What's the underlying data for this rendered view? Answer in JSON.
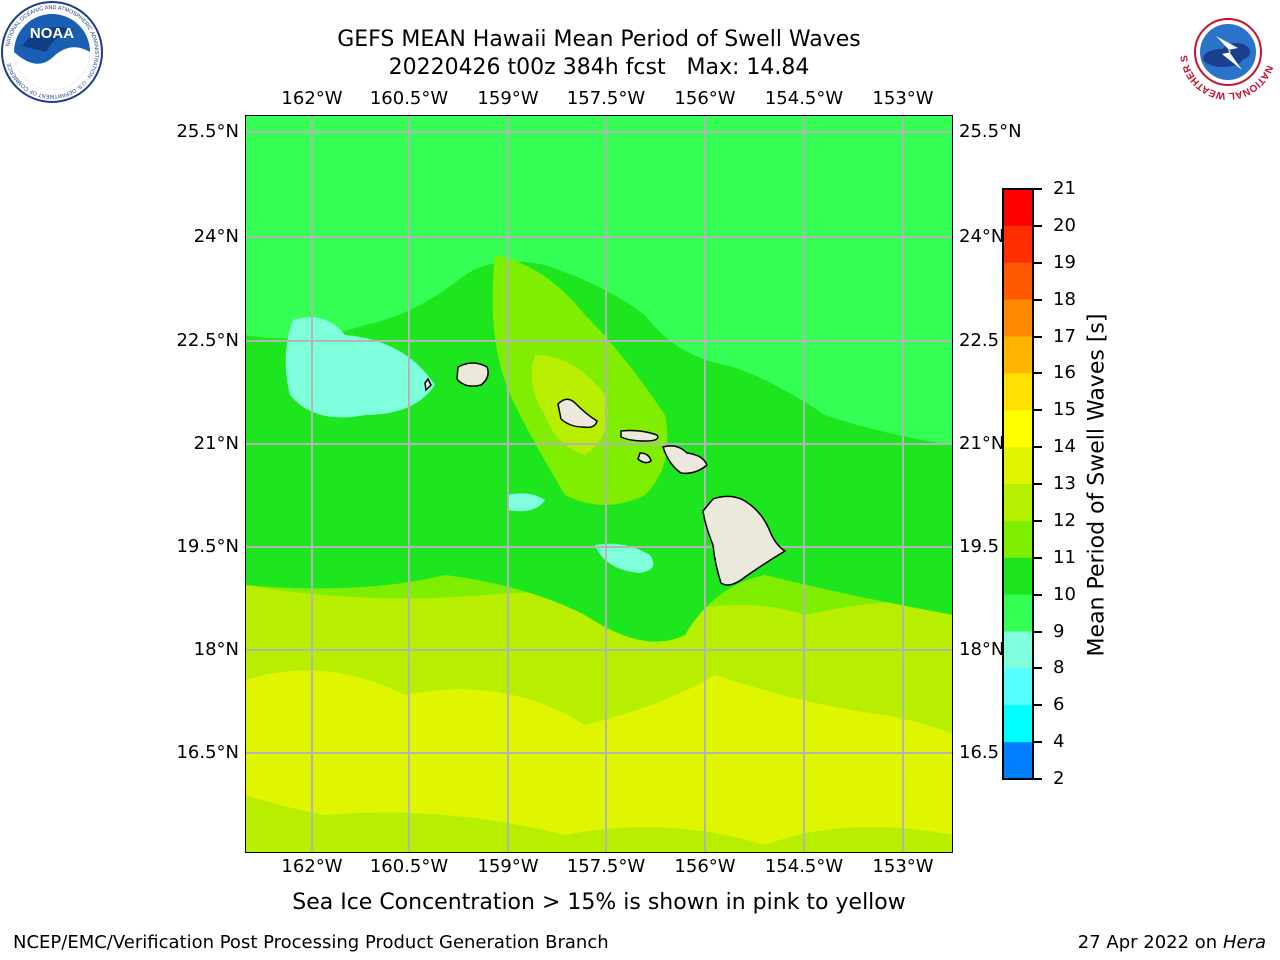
{
  "title": {
    "line1": "GEFS MEAN Hawaii Mean Period of Swell Waves",
    "line2": "20220426 t00z 384h fcst   Max: 14.84"
  },
  "map": {
    "lon_ticks": [
      "162°W",
      "160.5°W",
      "159°W",
      "157.5°W",
      "156°W",
      "154.5°W",
      "153°W"
    ],
    "lat_ticks": [
      "25.5°N",
      "24°N",
      "22.5°N",
      "21°N",
      "19.5°N",
      "18°N",
      "16.5°N"
    ],
    "lat_ticks_right": [
      "25.5°N",
      "24°N",
      "22.5",
      "21°N",
      "19.5",
      "18°N",
      "16.5"
    ],
    "gridline_color": "#b4b4b4",
    "land_color": "#ece9dc"
  },
  "colorbar": {
    "label": "Mean Period of Swell Waves [s]",
    "ticks": [
      "21",
      "20",
      "19",
      "18",
      "17",
      "16",
      "15",
      "14",
      "13",
      "12",
      "11",
      "10",
      "9",
      "8",
      "6",
      "4",
      "2"
    ],
    "colors": [
      "#ff0000",
      "#ff2f00",
      "#ff5a00",
      "#ff8a00",
      "#ffb400",
      "#ffe000",
      "#ffff00",
      "#e0f500",
      "#b4f000",
      "#80ee00",
      "#1ee61e",
      "#33ff55",
      "#80ffdd",
      "#55ffff",
      "#00ffff",
      "#0080ff",
      "#0000ff"
    ]
  },
  "caption": "Sea Ice Concentration > 15% is shown in pink to yellow",
  "footer": {
    "left": "NCEP/EMC/Verification Post Processing Product Generation Branch",
    "right_date": "27 Apr 2022 on ",
    "right_host": "Hera"
  },
  "logos": {
    "left": "NOAA",
    "left_ring": "NATIONAL OCEANIC AND ATMOSPHERIC ADMINISTRATION · U.S. DEPARTMENT OF COMMERCE",
    "right_ring": "NATIONAL WEATHER SERVICE"
  }
}
